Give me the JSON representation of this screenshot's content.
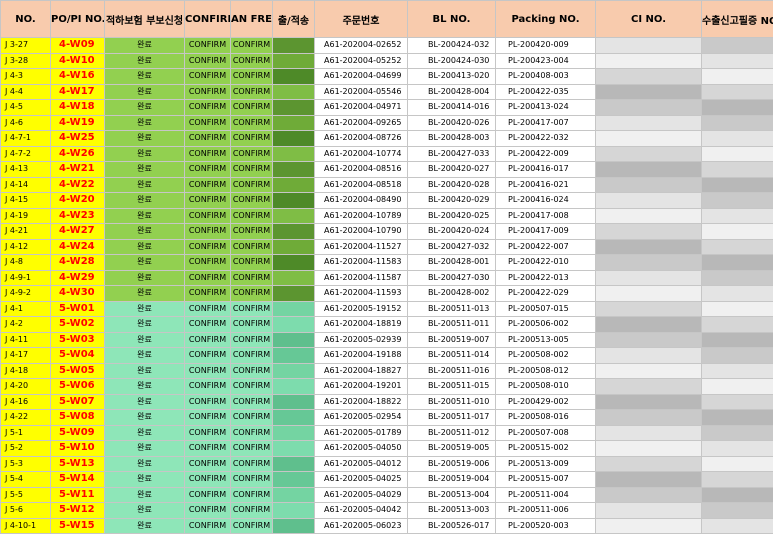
{
  "headers": [
    "NO.",
    "PO/PI NO.",
    "적하보험 부보신청",
    "CONFIRM",
    "AN FREIGHT",
    "출/적송",
    "주문번호",
    "BL NO.",
    "Packing NO.",
    "CI NO.",
    "수출신고필증 NO."
  ],
  "colors": {
    "header_bg": "#f8cbad",
    "no_col_bg": "#ffff00",
    "po_text": "#ff0000",
    "group_a_bg": "#92d050",
    "group_a_dark": [
      "#6fab38",
      "#5c9530",
      "#7fbd45",
      "#4e8a28"
    ],
    "group_b_bg": "#8ee6b8",
    "group_b_dark": [
      "#74d4a2",
      "#66c896",
      "#5fbf8d",
      "#7ddcad"
    ],
    "blur": [
      "#c9c9c9",
      "#d6d6d6",
      "#e4e4e4",
      "#b8b8b8",
      "#f0f0f0"
    ]
  },
  "rows": [
    {
      "no": "J 3-27",
      "po": "4-W09",
      "ins": "완료",
      "confirm": "CONFIRM",
      "an": "CONFIRM",
      "order": "A61-202004-02652",
      "bl": "BL-200424-032",
      "pk": "PL-200420-009",
      "grp": "a"
    },
    {
      "no": "J 3-28",
      "po": "4-W10",
      "ins": "완료",
      "confirm": "CONFIRM",
      "an": "CONFIRM",
      "order": "A61-202004-05252",
      "bl": "BL-200424-030",
      "pk": "PL-200423-004",
      "grp": "a"
    },
    {
      "no": "J 4-3",
      "po": "4-W16",
      "ins": "완료",
      "confirm": "CONFIRM",
      "an": "CONFIRM",
      "order": "A61-202004-04699",
      "bl": "BL-200413-020",
      "pk": "PL-200408-003",
      "grp": "a"
    },
    {
      "no": "J 4-4",
      "po": "4-W17",
      "ins": "완료",
      "confirm": "CONFIRM",
      "an": "CONFIRM",
      "order": "A61-202004-05546",
      "bl": "BL-200428-004",
      "pk": "PL-200422-035",
      "grp": "a"
    },
    {
      "no": "J 4-5",
      "po": "4-W18",
      "ins": "완료",
      "confirm": "CONFIRM",
      "an": "CONFIRM",
      "order": "A61-202004-04971",
      "bl": "BL-200414-016",
      "pk": "PL-200413-024",
      "grp": "a"
    },
    {
      "no": "J 4-6",
      "po": "4-W19",
      "ins": "완료",
      "confirm": "CONFIRM",
      "an": "CONFIRM",
      "order": "A61-202004-09265",
      "bl": "BL-200420-026",
      "pk": "PL-200417-007",
      "grp": "a"
    },
    {
      "no": "J 4-7-1",
      "po": "4-W25",
      "ins": "완료",
      "confirm": "CONFIRM",
      "an": "CONFIRM",
      "order": "A61-202004-08726",
      "bl": "BL-200428-003",
      "pk": "PL-200422-032",
      "grp": "a"
    },
    {
      "no": "J 4-7-2",
      "po": "4-W26",
      "ins": "완료",
      "confirm": "CONFIRM",
      "an": "CONFIRM",
      "order": "A61-202004-10774",
      "bl": "BL-200427-033",
      "pk": "PL-200422-009",
      "grp": "a"
    },
    {
      "no": "J 4-13",
      "po": "4-W21",
      "ins": "완료",
      "confirm": "CONFIRM",
      "an": "CONFIRM",
      "order": "A61-202004-08516",
      "bl": "BL-200420-027",
      "pk": "PL-200416-017",
      "grp": "a"
    },
    {
      "no": "J 4-14",
      "po": "4-W22",
      "ins": "완료",
      "confirm": "CONFIRM",
      "an": "CONFIRM",
      "order": "A61-202004-08518",
      "bl": "BL-200420-028",
      "pk": "PL-200416-021",
      "grp": "a"
    },
    {
      "no": "J 4-15",
      "po": "4-W20",
      "ins": "완료",
      "confirm": "CONFIRM",
      "an": "CONFIRM",
      "order": "A61-202004-08490",
      "bl": "BL-200420-029",
      "pk": "PL-200416-024",
      "grp": "a"
    },
    {
      "no": "J 4-19",
      "po": "4-W23",
      "ins": "완료",
      "confirm": "CONFIRM",
      "an": "CONFIRM",
      "order": "A61-202004-10789",
      "bl": "BL-200420-025",
      "pk": "PL-200417-008",
      "grp": "a"
    },
    {
      "no": "J 4-21",
      "po": "4-W27",
      "ins": "완료",
      "confirm": "CONFIRM",
      "an": "CONFIRM",
      "order": "A61-202004-10790",
      "bl": "BL-200420-024",
      "pk": "PL-200417-009",
      "grp": "a"
    },
    {
      "no": "J 4-12",
      "po": "4-W24",
      "ins": "완료",
      "confirm": "CONFIRM",
      "an": "CONFIRM",
      "order": "A61-202004-11527",
      "bl": "BL-200427-032",
      "pk": "PL-200422-007",
      "grp": "a"
    },
    {
      "no": "J 4-8",
      "po": "4-W28",
      "ins": "완료",
      "confirm": "CONFIRM",
      "an": "CONFIRM",
      "order": "A61-202004-11583",
      "bl": "BL-200428-001",
      "pk": "PL-200422-010",
      "grp": "a"
    },
    {
      "no": "J 4-9-1",
      "po": "4-W29",
      "ins": "완료",
      "confirm": "CONFIRM",
      "an": "CONFIRM",
      "order": "A61-202004-11587",
      "bl": "BL-200427-030",
      "pk": "PL-200422-013",
      "grp": "a"
    },
    {
      "no": "J 4-9-2",
      "po": "4-W30",
      "ins": "완료",
      "confirm": "CONFIRM",
      "an": "CONFIRM",
      "order": "A61-202004-11593",
      "bl": "BL-200428-002",
      "pk": "PL-200422-029",
      "grp": "a"
    },
    {
      "no": "J 4-1",
      "po": "5-W01",
      "ins": "완료",
      "confirm": "CONFIRM",
      "an": "CONFIRM",
      "order": "A61-202005-19152",
      "bl": "BL-200511-013",
      "pk": "PL-200507-015",
      "grp": "b"
    },
    {
      "no": "J 4-2",
      "po": "5-W02",
      "ins": "완료",
      "confirm": "CONFIRM",
      "an": "CONFIRM",
      "order": "A61-202004-18819",
      "bl": "BL-200511-011",
      "pk": "PL-200506-002",
      "grp": "b"
    },
    {
      "no": "J 4-11",
      "po": "5-W03",
      "ins": "완료",
      "confirm": "CONFIRM",
      "an": "CONFIRM",
      "order": "A61-202005-02939",
      "bl": "BL-200519-007",
      "pk": "PL-200513-005",
      "grp": "b"
    },
    {
      "no": "J 4-17",
      "po": "5-W04",
      "ins": "완료",
      "confirm": "CONFIRM",
      "an": "CONFIRM",
      "order": "A61-202004-19188",
      "bl": "BL-200511-014",
      "pk": "PL-200508-002",
      "grp": "b"
    },
    {
      "no": "J 4-18",
      "po": "5-W05",
      "ins": "완료",
      "confirm": "CONFIRM",
      "an": "CONFIRM",
      "order": "A61-202004-18827",
      "bl": "BL-200511-016",
      "pk": "PL-200508-012",
      "grp": "b"
    },
    {
      "no": "J 4-20",
      "po": "5-W06",
      "ins": "완료",
      "confirm": "CONFIRM",
      "an": "CONFIRM",
      "order": "A61-202004-19201",
      "bl": "BL-200511-015",
      "pk": "PL-200508-010",
      "grp": "b"
    },
    {
      "no": "J 4-16",
      "po": "5-W07",
      "ins": "완료",
      "confirm": "CONFIRM",
      "an": "CONFIRM",
      "order": "A61-202004-18822",
      "bl": "BL-200511-010",
      "pk": "PL-200429-002",
      "grp": "b"
    },
    {
      "no": "J 4-22",
      "po": "5-W08",
      "ins": "완료",
      "confirm": "CONFIRM",
      "an": "CONFIRM",
      "order": "A61-202005-02954",
      "bl": "BL-200511-017",
      "pk": "PL-200508-016",
      "grp": "b"
    },
    {
      "no": "J 5-1",
      "po": "5-W09",
      "ins": "완료",
      "confirm": "CONFIRM",
      "an": "CONFIRM",
      "order": "A61-202005-01789",
      "bl": "BL-200511-012",
      "pk": "PL-200507-008",
      "grp": "b"
    },
    {
      "no": "J 5-2",
      "po": "5-W10",
      "ins": "완료",
      "confirm": "CONFIRM",
      "an": "CONFIRM",
      "order": "A61-202005-04050",
      "bl": "BL-200519-005",
      "pk": "PL-200515-002",
      "grp": "b"
    },
    {
      "no": "J 5-3",
      "po": "5-W13",
      "ins": "완료",
      "confirm": "CONFIRM",
      "an": "CONFIRM",
      "order": "A61-202005-04012",
      "bl": "BL-200519-006",
      "pk": "PL-200513-009",
      "grp": "b"
    },
    {
      "no": "J 5-4",
      "po": "5-W14",
      "ins": "완료",
      "confirm": "CONFIRM",
      "an": "CONFIRM",
      "order": "A61-202005-04025",
      "bl": "BL-200519-004",
      "pk": "PL-200515-007",
      "grp": "b"
    },
    {
      "no": "J 5-5",
      "po": "5-W11",
      "ins": "완료",
      "confirm": "CONFIRM",
      "an": "CONFIRM",
      "order": "A61-202005-04029",
      "bl": "BL-200513-004",
      "pk": "PL-200511-004",
      "grp": "b"
    },
    {
      "no": "J 5-6",
      "po": "5-W12",
      "ins": "완료",
      "confirm": "CONFIRM",
      "an": "CONFIRM",
      "order": "A61-202005-04042",
      "bl": "BL-200513-003",
      "pk": "PL-200511-006",
      "grp": "b"
    },
    {
      "no": "J 4-10-1",
      "po": "5-W15",
      "ins": "완료",
      "confirm": "CONFIRM",
      "an": "CONFIRM",
      "order": "A61-202005-06023",
      "bl": "BL-200526-017",
      "pk": "PL-200520-003",
      "grp": "b"
    }
  ]
}
